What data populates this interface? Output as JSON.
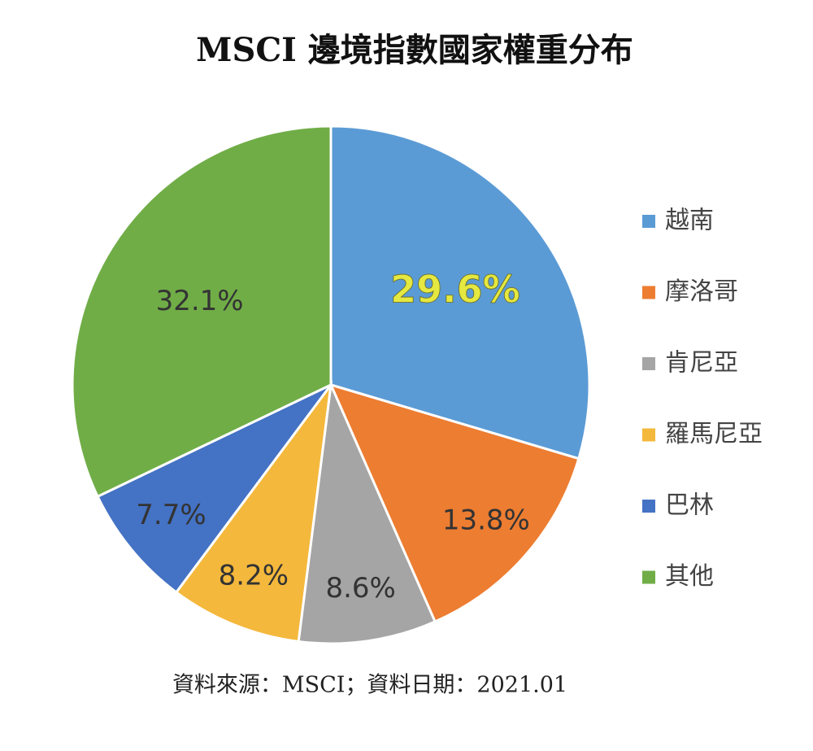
{
  "chart_data": {
    "type": "pie",
    "title": "MSCI 邊境指數國家權重分布",
    "categories": [
      "越南",
      "摩洛哥",
      "肯尼亞",
      "羅馬尼亞",
      "巴林",
      "其他"
    ],
    "values": [
      29.6,
      13.8,
      8.6,
      8.2,
      7.7,
      32.1
    ],
    "value_labels": [
      "29.6%",
      "13.8%",
      "8.6%",
      "8.2%",
      "7.7%",
      "32.1%"
    ],
    "colors": [
      "#5b9bd5",
      "#ed7d31",
      "#a5a5a5",
      "#f4b83c",
      "#4472c4",
      "#70ad47"
    ],
    "legend": "right",
    "source": "資料來源：MSCI；資料日期：2021.01"
  }
}
